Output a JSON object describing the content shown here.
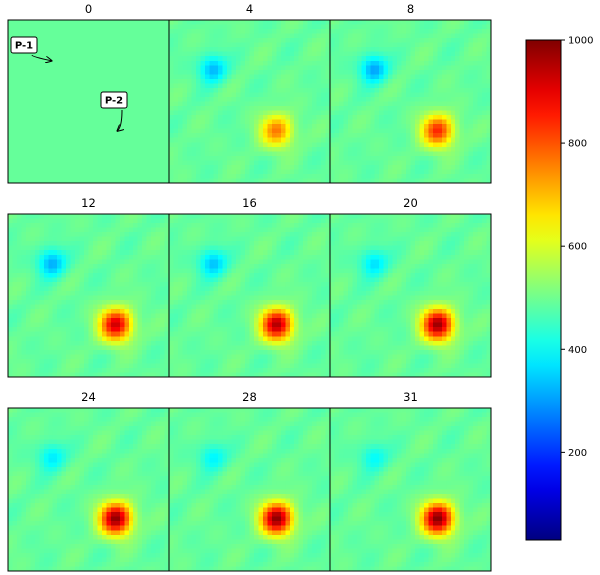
{
  "chart_data": {
    "type": "heatmap",
    "panel_titles": [
      "0",
      "4",
      "8",
      "12",
      "16",
      "20",
      "24",
      "28",
      "31"
    ],
    "annotations": [
      {
        "label": "P-1",
        "point": [
          0.27,
          0.25
        ]
      },
      {
        "label": "P-2",
        "point": [
          0.68,
          0.68
        ]
      }
    ],
    "colorbar": {
      "colormap": "jet",
      "vmin": 30,
      "vmax": 1000,
      "ticks": [
        200,
        400,
        600,
        800,
        1000
      ],
      "tick_labels": [
        "200",
        "400",
        "600",
        "800",
        "1000"
      ]
    },
    "field": {
      "background": 490,
      "texture_amplitude": 16,
      "p1": {
        "x": 0.27,
        "y": 0.3,
        "sigma": 0.06
      },
      "p2": {
        "x": 0.67,
        "y": 0.68,
        "sigma": 0.07
      }
    },
    "frames": [
      {
        "label": "0",
        "p1": 0,
        "p2": 0
      },
      {
        "label": "4",
        "p1": -170,
        "p2": 270
      },
      {
        "label": "8",
        "p1": -190,
        "p2": 350
      },
      {
        "label": "12",
        "p1": -180,
        "p2": 430
      },
      {
        "label": "16",
        "p1": -160,
        "p2": 460
      },
      {
        "label": "20",
        "p1": -130,
        "p2": 480
      },
      {
        "label": "24",
        "p1": -120,
        "p2": 490
      },
      {
        "label": "28",
        "p1": -110,
        "p2": 495
      },
      {
        "label": "31",
        "p1": -100,
        "p2": 500
      }
    ]
  }
}
